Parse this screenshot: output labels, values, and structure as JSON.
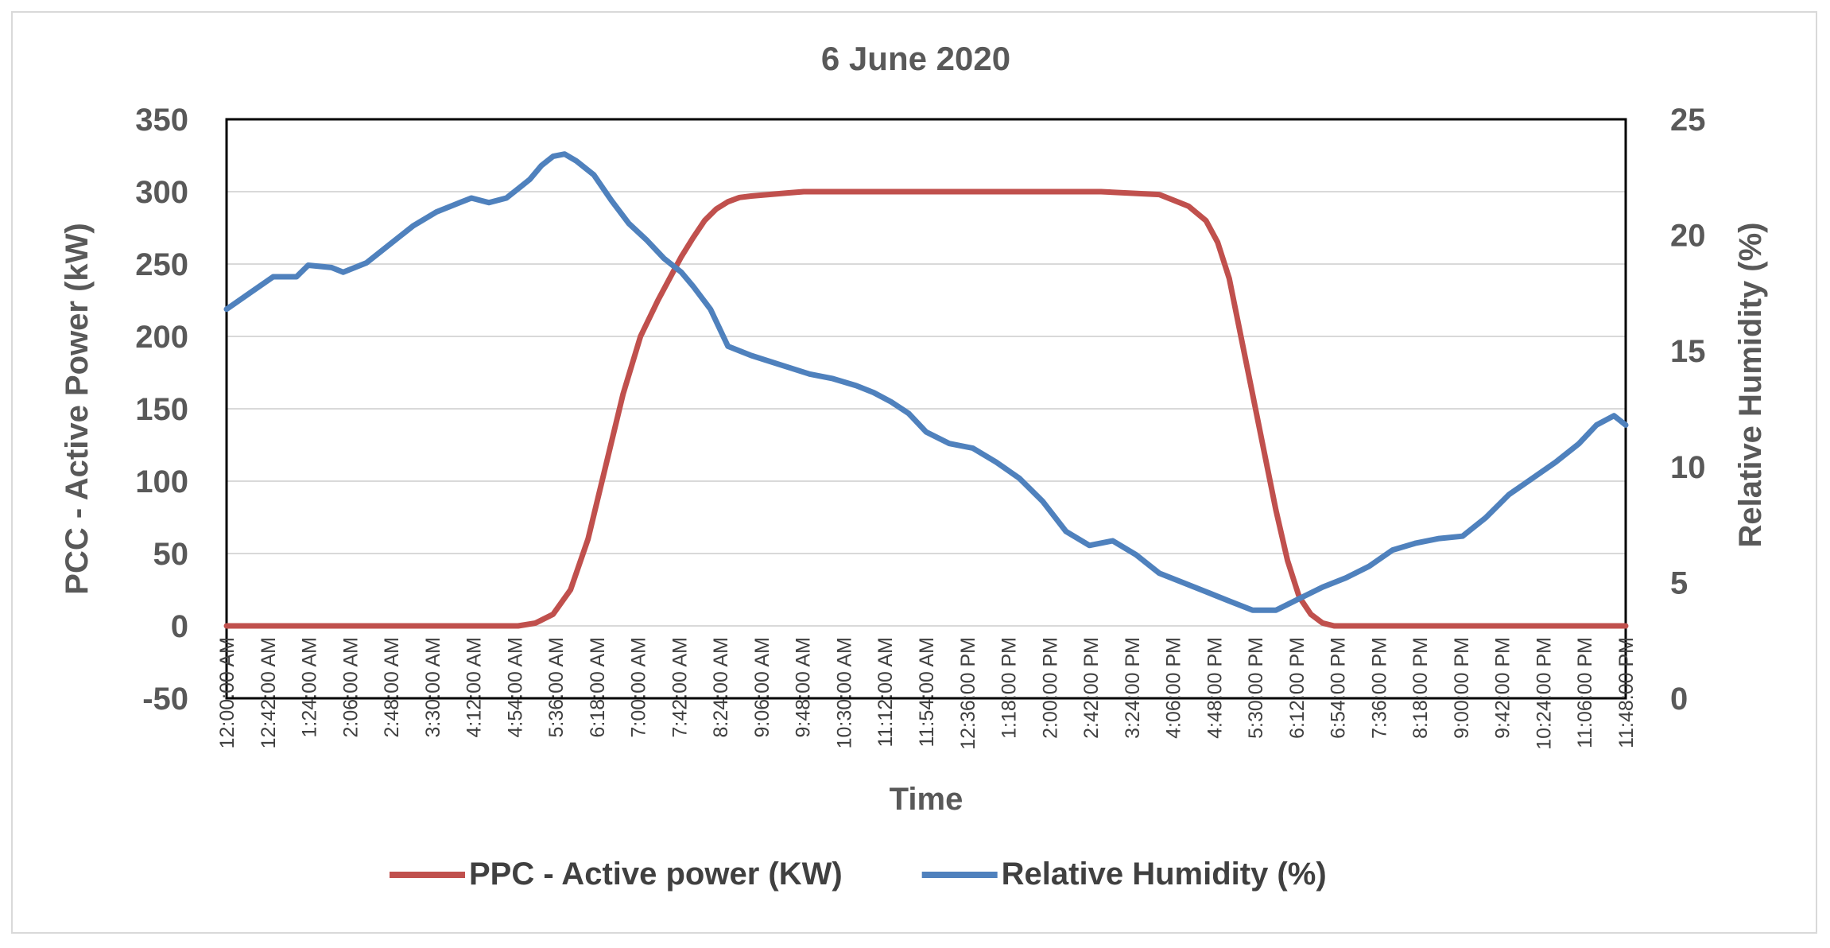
{
  "chart_data": {
    "type": "line",
    "title": "6 June 2020",
    "xlabel": "Time",
    "ylabel": "PCC - Active Power (kW)",
    "y2label": "Relative Humidity (%)",
    "ylim": [
      -50,
      350
    ],
    "yticks": [
      -50,
      0,
      50,
      100,
      150,
      200,
      250,
      300,
      350
    ],
    "y2lim": [
      0,
      25
    ],
    "y2ticks": [
      0,
      5,
      10,
      15,
      20,
      25
    ],
    "x_tick_labels": [
      "12:00:00 AM",
      "12:42:00 AM",
      "1:24:00 AM",
      "2:06:00 AM",
      "2:48:00 AM",
      "3:30:00 AM",
      "4:12:00 AM",
      "4:54:00 AM",
      "5:36:00 AM",
      "6:18:00 AM",
      "7:00:00 AM",
      "7:42:00 AM",
      "8:24:00 AM",
      "9:06:00 AM",
      "9:48:00 AM",
      "10:30:00 AM",
      "11:12:00 AM",
      "11:54:00 AM",
      "12:36:00 PM",
      "1:18:00 PM",
      "2:00:00 PM",
      "2:42:00 PM",
      "3:24:00 PM",
      "4:06:00 PM",
      "4:48:00 PM",
      "5:30:00 PM",
      "6:12:00 PM",
      "6:54:00 PM",
      "7:36:00 PM",
      "8:18:00 PM",
      "9:00:00 PM",
      "9:42:00 PM",
      "10:24:00 PM",
      "11:06:00 PM",
      "11:48:00 PM"
    ],
    "gridlines": true,
    "legend_position": "bottom",
    "series": [
      {
        "name": "PPC - Active power (KW)",
        "color": "#c0504d",
        "axis": "left",
        "x_hours": [
          0,
          5.0,
          5.3,
          5.6,
          5.9,
          6.2,
          6.5,
          6.8,
          7.1,
          7.4,
          7.6,
          7.8,
          8.0,
          8.2,
          8.4,
          8.6,
          8.8,
          9.0,
          9.3,
          9.6,
          9.9,
          10.2,
          12.0,
          15.0,
          16.0,
          16.5,
          16.8,
          17.0,
          17.2,
          17.4,
          17.6,
          17.8,
          18.0,
          18.2,
          18.4,
          18.6,
          18.8,
          19.0,
          19.2,
          19.4,
          24.0
        ],
        "values": [
          0,
          0,
          2,
          8,
          25,
          60,
          110,
          160,
          200,
          225,
          240,
          255,
          268,
          280,
          288,
          293,
          296,
          297,
          298,
          299,
          300,
          300,
          300,
          300,
          298,
          290,
          280,
          265,
          240,
          200,
          160,
          120,
          80,
          45,
          20,
          8,
          2,
          0,
          0,
          0,
          0
        ]
      },
      {
        "name": "Relative Humidity (%)",
        "color": "#4f81bd",
        "axis": "right",
        "x_hours": [
          0,
          0.4,
          0.8,
          1.2,
          1.4,
          1.8,
          2.0,
          2.4,
          2.8,
          3.2,
          3.6,
          4.0,
          4.2,
          4.5,
          4.8,
          5.0,
          5.2,
          5.4,
          5.6,
          5.8,
          6.0,
          6.3,
          6.6,
          6.9,
          7.2,
          7.5,
          7.8,
          8.0,
          8.3,
          8.6,
          9.0,
          9.5,
          10.0,
          10.4,
          10.8,
          11.1,
          11.4,
          11.7,
          12.0,
          12.4,
          12.8,
          13.2,
          13.6,
          14.0,
          14.4,
          14.8,
          15.2,
          15.6,
          16.0,
          16.4,
          16.8,
          17.2,
          17.6,
          18.0,
          18.4,
          18.8,
          19.2,
          19.6,
          20.0,
          20.4,
          20.8,
          21.2,
          21.6,
          22.0,
          22.4,
          22.8,
          23.2,
          23.5,
          23.8,
          24.0
        ],
        "values": [
          16.8,
          17.5,
          18.2,
          18.2,
          18.7,
          18.6,
          18.4,
          18.8,
          19.6,
          20.4,
          21.0,
          21.4,
          21.6,
          21.4,
          21.6,
          22.0,
          22.4,
          23.0,
          23.4,
          23.5,
          23.2,
          22.6,
          21.5,
          20.5,
          19.8,
          19.0,
          18.4,
          17.8,
          16.8,
          15.2,
          14.8,
          14.4,
          14.0,
          13.8,
          13.5,
          13.2,
          12.8,
          12.3,
          11.5,
          11.0,
          10.8,
          10.2,
          9.5,
          8.5,
          7.2,
          6.6,
          6.8,
          6.2,
          5.4,
          5.0,
          4.6,
          4.2,
          3.8,
          3.8,
          4.3,
          4.8,
          5.2,
          5.7,
          6.4,
          6.7,
          6.9,
          7.0,
          7.8,
          8.8,
          9.5,
          10.2,
          11.0,
          11.8,
          12.2,
          11.8
        ]
      }
    ]
  }
}
